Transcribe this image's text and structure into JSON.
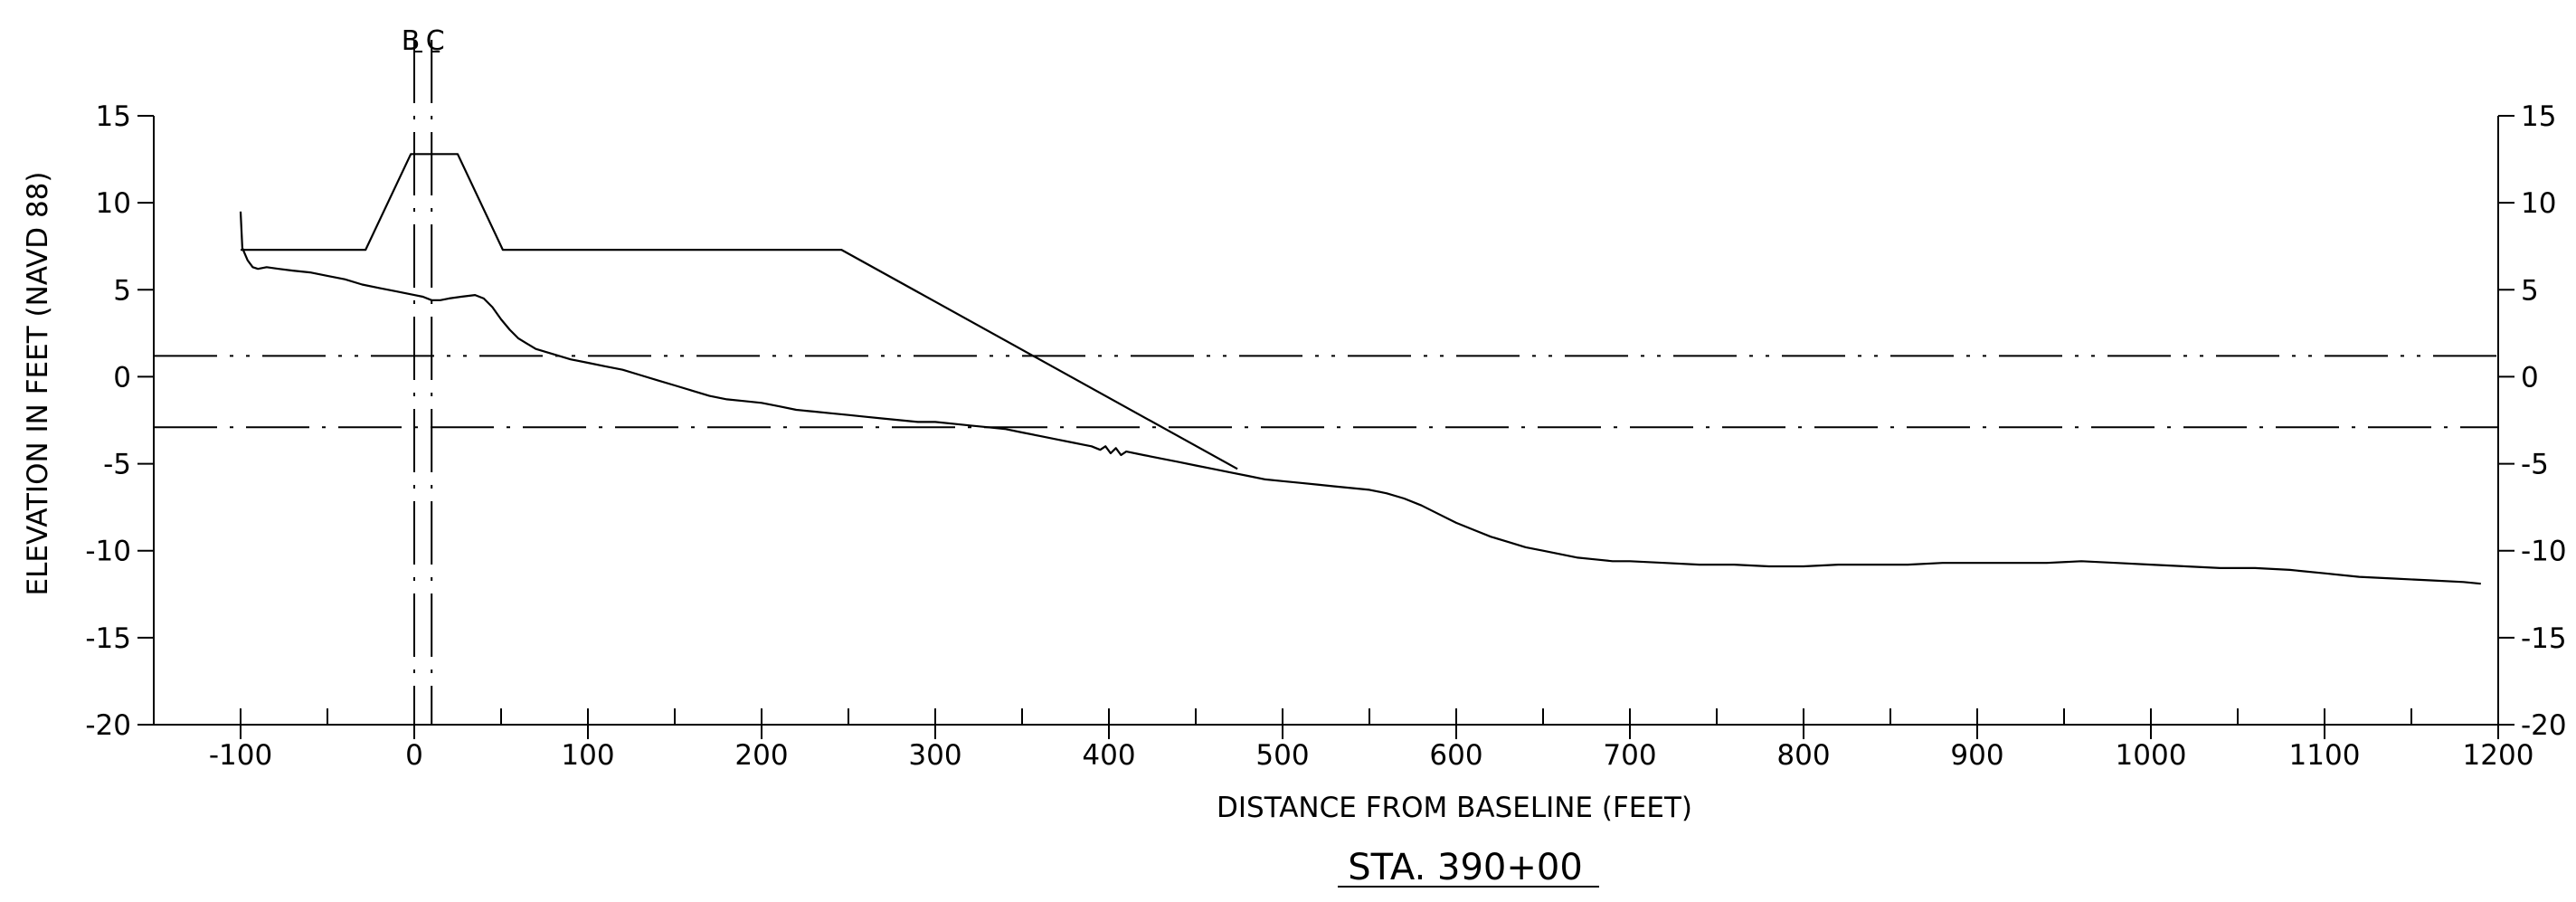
{
  "chart_data": {
    "type": "line",
    "title": "STA. 390+00",
    "xlabel": "DISTANCE FROM BASELINE (FEET)",
    "ylabel": "ELEVATION IN FEET (NAVD 88)",
    "xlim": [
      -150,
      1200
    ],
    "ylim": [
      -20,
      15
    ],
    "x_ticks": [
      -100,
      0,
      100,
      200,
      300,
      400,
      500,
      600,
      700,
      800,
      900,
      1000,
      1100,
      1200
    ],
    "y_ticks": [
      -20,
      -15,
      -10,
      -5,
      0,
      5,
      10,
      15
    ],
    "grid": false,
    "series": [
      {
        "values": [
          [
            -100,
            9.5
          ],
          [
            -99,
            7.4
          ],
          [
            -96,
            6.7
          ],
          [
            -93,
            6.3
          ],
          [
            -90,
            6.2
          ],
          [
            -85,
            6.3
          ],
          [
            -78,
            6.2
          ],
          [
            -70,
            6.1
          ],
          [
            -60,
            6.0
          ],
          [
            -50,
            5.8
          ],
          [
            -40,
            5.6
          ],
          [
            -30,
            5.3
          ],
          [
            -20,
            5.1
          ],
          [
            -10,
            4.9
          ],
          [
            0,
            4.7
          ],
          [
            5,
            4.6
          ],
          [
            10,
            4.4
          ],
          [
            15,
            4.4
          ],
          [
            20,
            4.5
          ],
          [
            27,
            4.6
          ],
          [
            35,
            4.7
          ],
          [
            40,
            4.5
          ],
          [
            45,
            4.0
          ],
          [
            50,
            3.3
          ],
          [
            55,
            2.7
          ],
          [
            60,
            2.2
          ],
          [
            65,
            1.9
          ],
          [
            70,
            1.6
          ],
          [
            80,
            1.3
          ],
          [
            90,
            1.0
          ],
          [
            100,
            0.8
          ],
          [
            110,
            0.6
          ],
          [
            120,
            0.4
          ],
          [
            130,
            0.1
          ],
          [
            140,
            -0.2
          ],
          [
            150,
            -0.5
          ],
          [
            160,
            -0.8
          ],
          [
            170,
            -1.1
          ],
          [
            180,
            -1.3
          ],
          [
            190,
            -1.4
          ],
          [
            200,
            -1.5
          ],
          [
            210,
            -1.7
          ],
          [
            220,
            -1.9
          ],
          [
            230,
            -2.0
          ],
          [
            240,
            -2.1
          ],
          [
            250,
            -2.2
          ],
          [
            260,
            -2.3
          ],
          [
            270,
            -2.4
          ],
          [
            280,
            -2.5
          ],
          [
            290,
            -2.6
          ],
          [
            300,
            -2.6
          ],
          [
            310,
            -2.7
          ],
          [
            320,
            -2.8
          ],
          [
            330,
            -2.9
          ],
          [
            340,
            -3.0
          ],
          [
            350,
            -3.2
          ],
          [
            360,
            -3.4
          ],
          [
            370,
            -3.6
          ],
          [
            380,
            -3.8
          ],
          [
            385,
            -3.9
          ],
          [
            390,
            -4.0
          ],
          [
            395,
            -4.2
          ],
          [
            398,
            -4.0
          ],
          [
            401,
            -4.4
          ],
          [
            404,
            -4.1
          ],
          [
            407,
            -4.5
          ],
          [
            410,
            -4.3
          ],
          [
            420,
            -4.5
          ],
          [
            430,
            -4.7
          ],
          [
            440,
            -4.9
          ],
          [
            450,
            -5.1
          ],
          [
            460,
            -5.3
          ],
          [
            470,
            -5.5
          ],
          [
            480,
            -5.7
          ],
          [
            490,
            -5.9
          ],
          [
            500,
            -6.0
          ],
          [
            510,
            -6.1
          ],
          [
            520,
            -6.2
          ],
          [
            530,
            -6.3
          ],
          [
            540,
            -6.4
          ],
          [
            550,
            -6.5
          ],
          [
            560,
            -6.7
          ],
          [
            570,
            -7.0
          ],
          [
            580,
            -7.4
          ],
          [
            590,
            -7.9
          ],
          [
            600,
            -8.4
          ],
          [
            610,
            -8.8
          ],
          [
            620,
            -9.2
          ],
          [
            630,
            -9.5
          ],
          [
            640,
            -9.8
          ],
          [
            650,
            -10.0
          ],
          [
            660,
            -10.2
          ],
          [
            670,
            -10.4
          ],
          [
            680,
            -10.5
          ],
          [
            690,
            -10.6
          ],
          [
            700,
            -10.6
          ],
          [
            720,
            -10.7
          ],
          [
            740,
            -10.8
          ],
          [
            760,
            -10.8
          ],
          [
            780,
            -10.9
          ],
          [
            800,
            -10.9
          ],
          [
            820,
            -10.8
          ],
          [
            840,
            -10.8
          ],
          [
            860,
            -10.8
          ],
          [
            880,
            -10.7
          ],
          [
            900,
            -10.7
          ],
          [
            920,
            -10.7
          ],
          [
            940,
            -10.7
          ],
          [
            960,
            -10.6
          ],
          [
            980,
            -10.7
          ],
          [
            1000,
            -10.8
          ],
          [
            1020,
            -10.9
          ],
          [
            1040,
            -11.0
          ],
          [
            1060,
            -11.0
          ],
          [
            1080,
            -11.1
          ],
          [
            1100,
            -11.3
          ],
          [
            1120,
            -11.5
          ],
          [
            1140,
            -11.6
          ],
          [
            1160,
            -11.7
          ],
          [
            1180,
            -11.8
          ],
          [
            1190,
            -11.9
          ]
        ]
      },
      {
        "values": [
          [
            -100,
            7.3
          ],
          [
            -28,
            7.3
          ],
          [
            -2,
            12.8
          ],
          [
            25,
            12.8
          ],
          [
            51,
            7.3
          ],
          [
            246,
            7.3
          ],
          [
            474,
            -5.3
          ]
        ]
      }
    ],
    "reference_lines": [
      {
        "axis": "y",
        "value": 1.2,
        "style": "dash-dot-dot"
      },
      {
        "axis": "y",
        "value": -2.9,
        "style": "dash-dot"
      },
      {
        "axis": "x",
        "value": 0,
        "style": "dash-dot",
        "label": "B"
      },
      {
        "axis": "x",
        "value": 10,
        "style": "dash-dot",
        "label": "C"
      }
    ],
    "colors": {
      "line": "#000000",
      "background": "#ffffff"
    }
  }
}
